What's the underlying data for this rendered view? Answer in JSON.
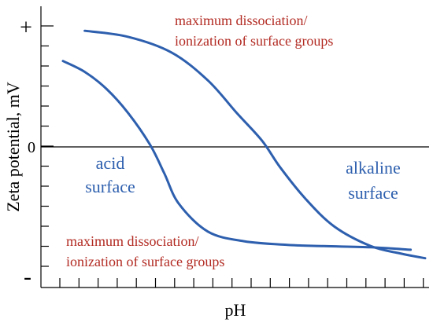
{
  "chart_data": {
    "type": "line",
    "xlabel": "pH",
    "ylabel": "Zeta potential, mV",
    "ylim": [
      -1,
      1
    ],
    "xlim": [
      0,
      1
    ],
    "y_tick_labels": {
      "top": "+",
      "zero": "0",
      "bottom": "-"
    },
    "zero_line": true,
    "annotations": {
      "top": [
        "maximum dissociation/",
        "ionization of surface groups"
      ],
      "bottom": [
        "maximum dissociation/",
        "ionization of surface groups"
      ],
      "acid": [
        "acid",
        "surface"
      ],
      "alkaline": [
        "alkaline",
        "surface"
      ]
    },
    "series": [
      {
        "x": [
          0.0,
          0.06,
          0.12,
          0.18,
          0.24,
          0.28,
          0.32,
          0.4,
          0.5,
          0.62,
          0.72,
          0.85,
          0.96
        ],
        "y": [
          0.71,
          0.62,
          0.48,
          0.28,
          0.02,
          -0.22,
          -0.47,
          -0.7,
          -0.78,
          -0.81,
          -0.82,
          -0.83,
          -0.85
        ]
      },
      {
        "x": [
          0.06,
          0.18,
          0.3,
          0.4,
          0.48,
          0.55,
          0.6,
          0.67,
          0.75,
          0.85,
          0.93,
          1.0
        ],
        "y": [
          0.96,
          0.91,
          0.78,
          0.55,
          0.28,
          0.05,
          -0.17,
          -0.43,
          -0.66,
          -0.82,
          -0.88,
          -0.92
        ]
      }
    ],
    "colors": {
      "curve": "#2d5fae",
      "annotation": "#b22a22",
      "axis": "#000000"
    }
  }
}
